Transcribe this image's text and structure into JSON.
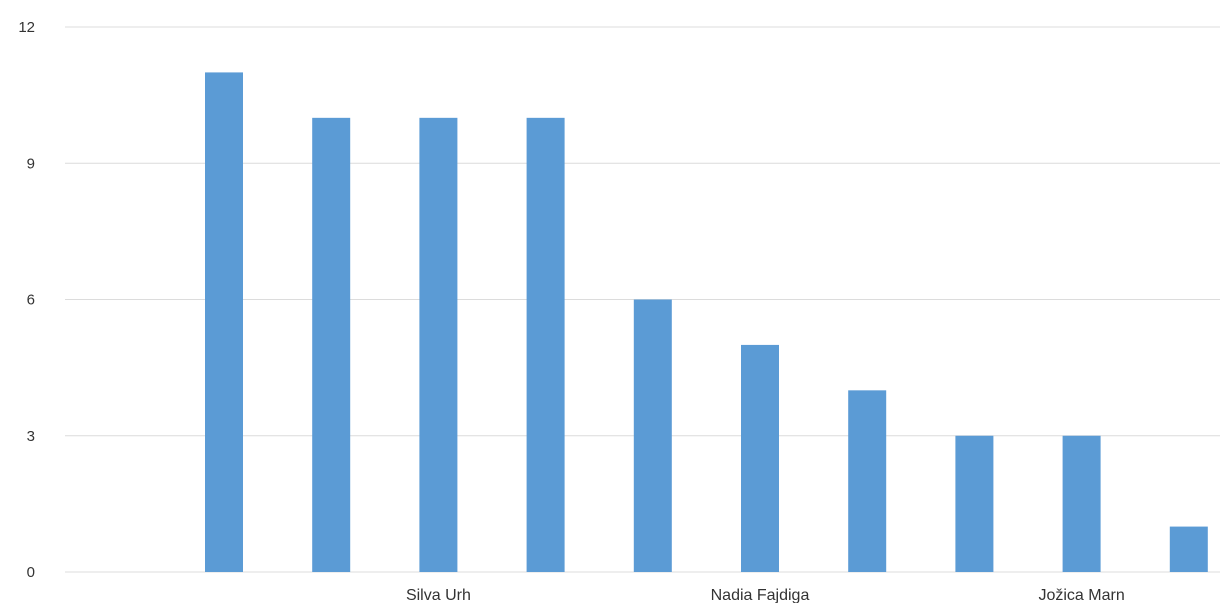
{
  "chart_data": {
    "type": "bar",
    "categories": [
      "",
      "",
      "Silva Urh",
      "",
      "",
      "Nadia Fajdiga",
      "",
      "",
      "Jožica Marn",
      ""
    ],
    "values": [
      11,
      10,
      10,
      10,
      6,
      5,
      4,
      3,
      3,
      1
    ],
    "ylim": [
      0,
      12
    ],
    "yticks": [
      0,
      3,
      6,
      9,
      12
    ],
    "grid": true,
    "bar_color": "#5b9bd5",
    "title": "",
    "xlabel": "",
    "ylabel": ""
  }
}
